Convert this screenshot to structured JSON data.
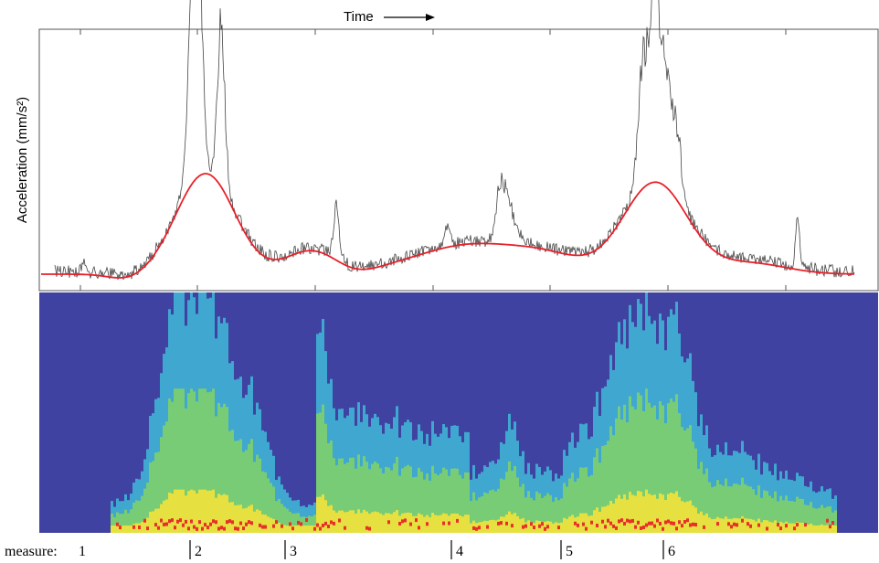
{
  "header": {
    "title": "Time",
    "y_label": "Acceleration (mm/s²)"
  },
  "footer": {
    "measure_label": "measure:",
    "measures": [
      "1",
      "2",
      "3",
      "4",
      "5",
      "6"
    ]
  }
}
